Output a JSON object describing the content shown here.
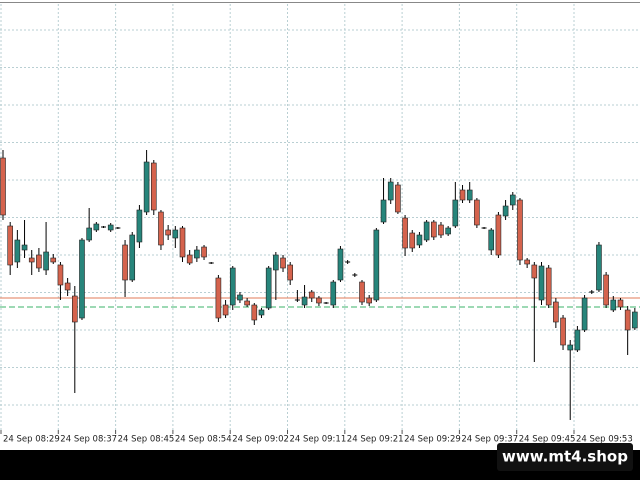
{
  "chart_data": {
    "type": "candlestick",
    "ylim": [
      0,
      430
    ],
    "up_color": "#27857b",
    "down_color": "#d5634d",
    "grid": true,
    "x_labels": [
      "24 Sep 08:29",
      "24 Sep 08:37",
      "24 Sep 08:45",
      "24 Sep 08:54",
      "24 Sep 09:02",
      "24 Sep 09:11",
      "24 Sep 09:21",
      "24 Sep 09:29",
      "24 Sep 09:37",
      "24 Sep 09:45",
      "24 Sep 09:53"
    ],
    "bid_line": 132,
    "bid_color": "#e07b5a",
    "ask_line": 123,
    "ask_color": "#3bb36a",
    "candles": [
      {
        "o": 272,
        "h": 280,
        "l": 210,
        "c": 215
      },
      {
        "o": 204,
        "h": 208,
        "l": 155,
        "c": 165
      },
      {
        "o": 168,
        "h": 200,
        "l": 162,
        "c": 190
      },
      {
        "o": 180,
        "h": 210,
        "l": 172,
        "c": 185
      },
      {
        "o": 172,
        "h": 180,
        "l": 155,
        "c": 168
      },
      {
        "o": 175,
        "h": 182,
        "l": 158,
        "c": 162
      },
      {
        "o": 160,
        "h": 208,
        "l": 155,
        "c": 178
      },
      {
        "o": 172,
        "h": 176,
        "l": 166,
        "c": 168
      },
      {
        "o": 165,
        "h": 168,
        "l": 130,
        "c": 145
      },
      {
        "o": 147,
        "h": 152,
        "l": 134,
        "c": 140
      },
      {
        "o": 134,
        "h": 144,
        "l": 37,
        "c": 108
      },
      {
        "o": 112,
        "h": 192,
        "l": 110,
        "c": 190
      },
      {
        "o": 190,
        "h": 222,
        "l": 188,
        "c": 202
      },
      {
        "o": 200,
        "h": 208,
        "l": 198,
        "c": 206
      },
      {
        "o": 203,
        "h": 204,
        "l": 202,
        "c": 203
      },
      {
        "o": 200,
        "h": 207,
        "l": 198,
        "c": 205
      },
      {
        "o": 202,
        "h": 203,
        "l": 201,
        "c": 202
      },
      {
        "o": 185,
        "h": 190,
        "l": 133,
        "c": 150
      },
      {
        "o": 150,
        "h": 198,
        "l": 148,
        "c": 195
      },
      {
        "o": 188,
        "h": 225,
        "l": 182,
        "c": 220
      },
      {
        "o": 218,
        "h": 280,
        "l": 215,
        "c": 268
      },
      {
        "o": 267,
        "h": 270,
        "l": 215,
        "c": 220
      },
      {
        "o": 218,
        "h": 220,
        "l": 180,
        "c": 185
      },
      {
        "o": 200,
        "h": 205,
        "l": 190,
        "c": 195
      },
      {
        "o": 192,
        "h": 204,
        "l": 182,
        "c": 200
      },
      {
        "o": 202,
        "h": 204,
        "l": 168,
        "c": 173
      },
      {
        "o": 175,
        "h": 180,
        "l": 165,
        "c": 167
      },
      {
        "o": 172,
        "h": 184,
        "l": 168,
        "c": 180
      },
      {
        "o": 183,
        "h": 185,
        "l": 170,
        "c": 173
      },
      {
        "o": 167,
        "h": 168,
        "l": 166,
        "c": 167
      },
      {
        "o": 152,
        "h": 155,
        "l": 108,
        "c": 112
      },
      {
        "o": 125,
        "h": 130,
        "l": 112,
        "c": 115
      },
      {
        "o": 125,
        "h": 164,
        "l": 120,
        "c": 162
      },
      {
        "o": 130,
        "h": 138,
        "l": 127,
        "c": 135
      },
      {
        "o": 129,
        "h": 132,
        "l": 123,
        "c": 125
      },
      {
        "o": 125,
        "h": 127,
        "l": 105,
        "c": 110
      },
      {
        "o": 115,
        "h": 122,
        "l": 112,
        "c": 120
      },
      {
        "o": 122,
        "h": 164,
        "l": 120,
        "c": 162
      },
      {
        "o": 160,
        "h": 178,
        "l": 130,
        "c": 175
      },
      {
        "o": 172,
        "h": 175,
        "l": 158,
        "c": 162
      },
      {
        "o": 165,
        "h": 168,
        "l": 145,
        "c": 150
      },
      {
        "o": 130,
        "h": 140,
        "l": 128,
        "c": 130
      },
      {
        "o": 125,
        "h": 145,
        "l": 122,
        "c": 133
      },
      {
        "o": 138,
        "h": 140,
        "l": 128,
        "c": 132
      },
      {
        "o": 132,
        "h": 134,
        "l": 124,
        "c": 127
      },
      {
        "o": 127,
        "h": 128,
        "l": 126,
        "c": 127
      },
      {
        "o": 125,
        "h": 150,
        "l": 122,
        "c": 148
      },
      {
        "o": 150,
        "h": 184,
        "l": 148,
        "c": 181
      },
      {
        "o": 168,
        "h": 170,
        "l": 166,
        "c": 168
      },
      {
        "o": 155,
        "h": 157,
        "l": 153,
        "c": 155
      },
      {
        "o": 148,
        "h": 150,
        "l": 125,
        "c": 128
      },
      {
        "o": 132,
        "h": 135,
        "l": 124,
        "c": 127
      },
      {
        "o": 130,
        "h": 202,
        "l": 128,
        "c": 200
      },
      {
        "o": 208,
        "h": 252,
        "l": 206,
        "c": 230
      },
      {
        "o": 230,
        "h": 252,
        "l": 226,
        "c": 248
      },
      {
        "o": 245,
        "h": 248,
        "l": 216,
        "c": 218
      },
      {
        "o": 212,
        "h": 215,
        "l": 174,
        "c": 182
      },
      {
        "o": 197,
        "h": 200,
        "l": 178,
        "c": 182
      },
      {
        "o": 185,
        "h": 198,
        "l": 182,
        "c": 195
      },
      {
        "o": 190,
        "h": 210,
        "l": 188,
        "c": 208
      },
      {
        "o": 208,
        "h": 210,
        "l": 190,
        "c": 193
      },
      {
        "o": 205,
        "h": 208,
        "l": 192,
        "c": 195
      },
      {
        "o": 196,
        "h": 204,
        "l": 194,
        "c": 202
      },
      {
        "o": 204,
        "h": 248,
        "l": 202,
        "c": 230
      },
      {
        "o": 240,
        "h": 245,
        "l": 227,
        "c": 230
      },
      {
        "o": 230,
        "h": 248,
        "l": 227,
        "c": 240
      },
      {
        "o": 230,
        "h": 232,
        "l": 202,
        "c": 205
      },
      {
        "o": 202,
        "h": 203,
        "l": 201,
        "c": 202
      },
      {
        "o": 180,
        "h": 202,
        "l": 175,
        "c": 200
      },
      {
        "o": 215,
        "h": 218,
        "l": 172,
        "c": 175
      },
      {
        "o": 214,
        "h": 230,
        "l": 210,
        "c": 224
      },
      {
        "o": 225,
        "h": 238,
        "l": 220,
        "c": 235
      },
      {
        "o": 230,
        "h": 232,
        "l": 165,
        "c": 170
      },
      {
        "o": 170,
        "h": 172,
        "l": 162,
        "c": 166
      },
      {
        "o": 165,
        "h": 168,
        "l": 68,
        "c": 152
      },
      {
        "o": 130,
        "h": 168,
        "l": 125,
        "c": 164
      },
      {
        "o": 162,
        "h": 165,
        "l": 122,
        "c": 125
      },
      {
        "o": 128,
        "h": 132,
        "l": 102,
        "c": 108
      },
      {
        "o": 112,
        "h": 115,
        "l": 80,
        "c": 85
      },
      {
        "o": 80,
        "h": 90,
        "l": 10,
        "c": 85
      },
      {
        "o": 80,
        "h": 104,
        "l": 78,
        "c": 100
      },
      {
        "o": 100,
        "h": 135,
        "l": 98,
        "c": 132
      },
      {
        "o": 138,
        "h": 140,
        "l": 136,
        "c": 138
      },
      {
        "o": 140,
        "h": 188,
        "l": 138,
        "c": 185
      },
      {
        "o": 155,
        "h": 158,
        "l": 122,
        "c": 125
      },
      {
        "o": 120,
        "h": 134,
        "l": 118,
        "c": 130
      },
      {
        "o": 130,
        "h": 132,
        "l": 120,
        "c": 123
      },
      {
        "o": 120,
        "h": 124,
        "l": 75,
        "c": 100
      },
      {
        "o": 102,
        "h": 122,
        "l": 100,
        "c": 118
      }
    ]
  },
  "watermark": "www.mt4.shop"
}
